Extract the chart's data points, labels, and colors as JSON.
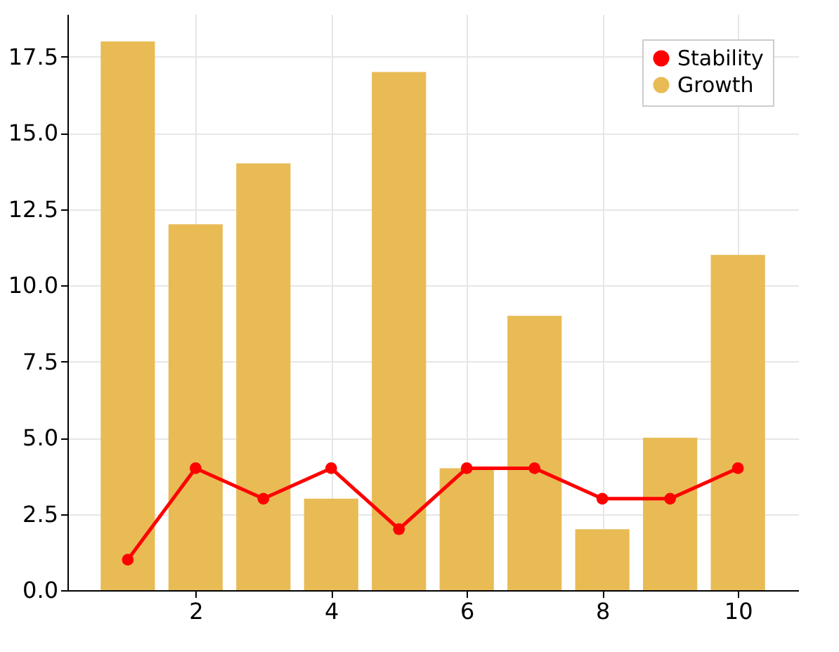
{
  "chart_data": {
    "type": "bar",
    "x": [
      1,
      2,
      3,
      4,
      5,
      6,
      7,
      8,
      9,
      10
    ],
    "series": [
      {
        "name": "Stability",
        "type": "line",
        "color": "#ff0000",
        "values": [
          1,
          4,
          3,
          4,
          2,
          4,
          4,
          3,
          3,
          4
        ]
      },
      {
        "name": "Growth",
        "color": "#e8bb55",
        "values": [
          18,
          12,
          14,
          3,
          17,
          4,
          9,
          2,
          5,
          11
        ]
      }
    ],
    "xlim": [
      0.11,
      10.89
    ],
    "xticks": [
      2,
      4,
      6,
      8,
      10
    ],
    "ylim": [
      0,
      18.9
    ],
    "yticks": [
      {
        "value": 0,
        "label": "0.0"
      },
      {
        "value": 2.5,
        "label": "2.5"
      },
      {
        "value": 5,
        "label": "5.0"
      },
      {
        "value": 7.5,
        "label": "7.5"
      },
      {
        "value": 10,
        "label": "10.0"
      },
      {
        "value": 12.5,
        "label": "12.5"
      },
      {
        "value": 15,
        "label": "15.0"
      },
      {
        "value": 17.5,
        "label": "17.5"
      }
    ],
    "grid": true,
    "legend": "top right",
    "marker": "circle",
    "line_style": "solid"
  }
}
